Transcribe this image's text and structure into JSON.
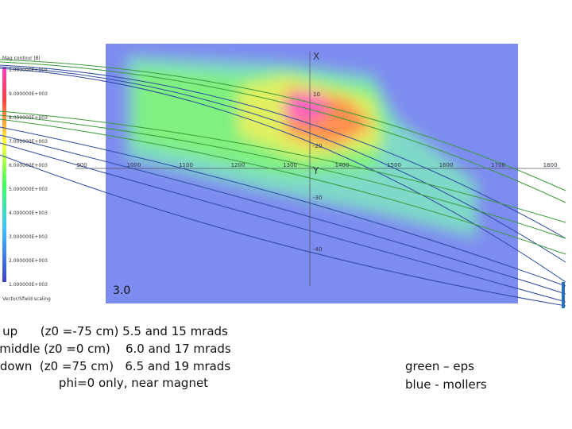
{
  "figure": {
    "scale_title": "Mag contour |B|",
    "scale_labels": [
      "1.000000E+004",
      "9.000000E+003",
      "8.000000E+003",
      "7.000000E+003",
      "6.000000E+003",
      "5.000000E+003",
      "4.000000E+003",
      "3.000000E+003",
      "2.000000E+003",
      "1.000000E+003"
    ],
    "scale_note": "Vector/Sfield scaling",
    "x_axis_labels": [
      "900",
      "1000",
      "1100",
      "1200",
      "1300",
      "1400",
      "1500",
      "1600",
      "1700",
      "1800"
    ],
    "vertical_axis_labels": [
      "X",
      "10",
      "-20",
      "Y",
      "-30",
      "-40"
    ],
    "panel_label": "3.0"
  },
  "notes": {
    "lines": [
      "up      (z0 =-75 cm) 5.5 and 15 mrads",
      "middle (z0 =0 cm)    6.0 and 17 mrads",
      "down  (z0 =75 cm)   6.5 and 19 mrads",
      "phi=0 only, near magnet"
    ]
  },
  "legend": {
    "lines": [
      "green – eps",
      "blue - mollers"
    ]
  }
}
